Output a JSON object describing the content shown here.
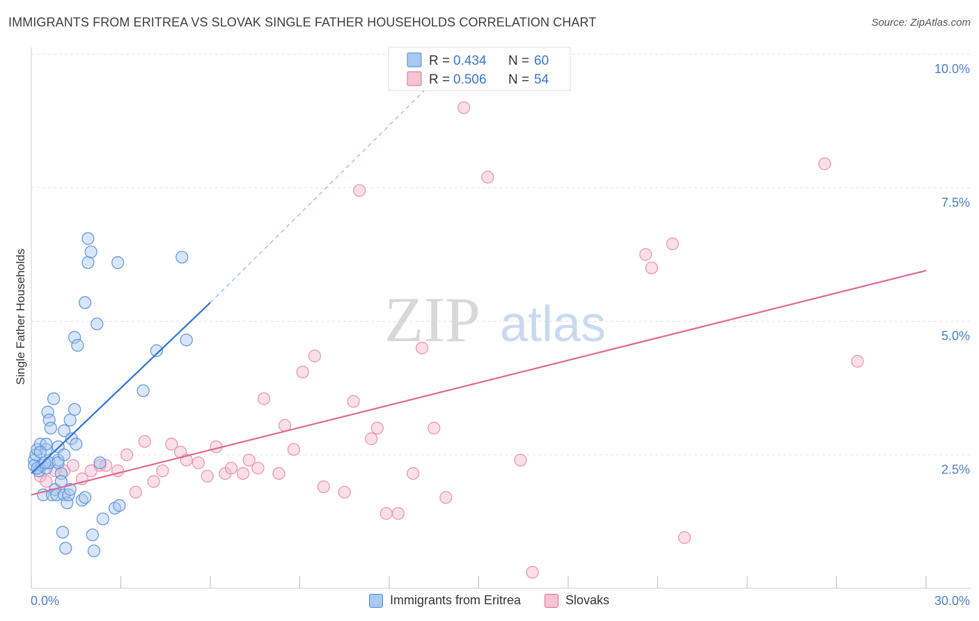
{
  "header": {
    "title": "IMMIGRANTS FROM ERITREA VS SLOVAK SINGLE FATHER HOUSEHOLDS CORRELATION CHART",
    "source": "Source: ZipAtlas.com"
  },
  "watermark": {
    "zip": "ZIP",
    "atlas": "atlas"
  },
  "colors": {
    "blue": "#4a86d8",
    "blue_fill": "#a9c8f0",
    "pink": "#e06890",
    "pink_fill": "#f5b8cc",
    "tick_label": "#4a7fc8",
    "grid": "#e3e3e3"
  },
  "legend": {
    "rows": [
      {
        "r_label": "R =",
        "r_value": "0.434",
        "n_label": "N =",
        "n_value": "60"
      },
      {
        "r_label": "R =",
        "r_value": "0.506",
        "n_label": "N =",
        "n_value": "54"
      }
    ]
  },
  "bottom_legend": [
    "Immigrants from Eritrea",
    "Slovaks"
  ],
  "chart_data": {
    "type": "scatter",
    "title": "IMMIGRANTS FROM ERITREA VS SLOVAK SINGLE FATHER HOUSEHOLDS CORRELATION CHART",
    "xlabel": "",
    "ylabel": "Single Father Households",
    "xlim": [
      0,
      30
    ],
    "ylim": [
      0,
      10.5
    ],
    "x_tick_labels": [
      "0.0%",
      "30.0%"
    ],
    "y_ticks": [
      2.5,
      5.0,
      7.5,
      10.0
    ],
    "y_tick_labels": [
      "2.5%",
      "5.0%",
      "7.5%",
      "10.0%"
    ],
    "grid": true,
    "legend_position": "top-center",
    "series": [
      {
        "name": "Immigrants from Eritrea",
        "color": "#4a86d8",
        "trendline": {
          "x": [
            0.0,
            6.0
          ],
          "y": [
            2.15,
            5.35
          ],
          "dashed_to": [
            13.5,
            9.5
          ]
        },
        "points": [
          [
            0.1,
            2.4
          ],
          [
            0.1,
            2.3
          ],
          [
            0.15,
            2.5
          ],
          [
            0.2,
            2.6
          ],
          [
            0.25,
            2.2
          ],
          [
            0.3,
            2.7
          ],
          [
            0.35,
            2.3
          ],
          [
            0.4,
            1.75
          ],
          [
            0.5,
            2.25
          ],
          [
            0.5,
            2.6
          ],
          [
            0.6,
            2.35
          ],
          [
            0.6,
            2.35
          ],
          [
            0.5,
            2.7
          ],
          [
            0.55,
            3.3
          ],
          [
            0.6,
            3.15
          ],
          [
            0.65,
            3.0
          ],
          [
            0.7,
            1.75
          ],
          [
            0.75,
            3.55
          ],
          [
            0.8,
            1.85
          ],
          [
            0.85,
            1.75
          ],
          [
            0.9,
            2.4
          ],
          [
            0.9,
            2.65
          ],
          [
            0.9,
            2.35
          ],
          [
            1.0,
            2.15
          ],
          [
            1.0,
            2.0
          ],
          [
            1.05,
            1.05
          ],
          [
            1.1,
            1.75
          ],
          [
            1.1,
            2.5
          ],
          [
            1.1,
            2.95
          ],
          [
            1.15,
            0.75
          ],
          [
            1.2,
            1.6
          ],
          [
            1.25,
            1.75
          ],
          [
            1.3,
            3.15
          ],
          [
            1.3,
            1.85
          ],
          [
            1.35,
            2.8
          ],
          [
            1.45,
            3.35
          ],
          [
            1.45,
            4.7
          ],
          [
            1.5,
            2.7
          ],
          [
            1.55,
            4.55
          ],
          [
            1.7,
            1.65
          ],
          [
            1.8,
            1.7
          ],
          [
            1.8,
            5.35
          ],
          [
            1.9,
            6.1
          ],
          [
            1.9,
            6.55
          ],
          [
            2.0,
            6.3
          ],
          [
            2.05,
            1.0
          ],
          [
            2.1,
            0.7
          ],
          [
            2.2,
            4.95
          ],
          [
            2.3,
            2.35
          ],
          [
            2.4,
            1.3
          ],
          [
            2.8,
            1.5
          ],
          [
            2.9,
            6.1
          ],
          [
            2.95,
            1.55
          ],
          [
            4.2,
            4.45
          ],
          [
            3.75,
            3.7
          ],
          [
            5.05,
            6.2
          ],
          [
            5.2,
            4.65
          ],
          [
            0.2,
            2.25
          ],
          [
            0.3,
            2.55
          ],
          [
            0.45,
            2.35
          ]
        ]
      },
      {
        "name": "Slovaks",
        "color": "#e06890",
        "trendline": {
          "x": [
            0.0,
            30.0
          ],
          "y": [
            1.75,
            5.95
          ]
        },
        "points": [
          [
            0.3,
            2.1
          ],
          [
            0.5,
            2.0
          ],
          [
            0.8,
            2.2
          ],
          [
            1.1,
            2.2
          ],
          [
            1.4,
            2.3
          ],
          [
            1.7,
            2.05
          ],
          [
            2.0,
            2.2
          ],
          [
            2.3,
            2.3
          ],
          [
            2.5,
            2.3
          ],
          [
            2.9,
            2.2
          ],
          [
            3.2,
            2.5
          ],
          [
            3.5,
            1.8
          ],
          [
            3.8,
            2.75
          ],
          [
            4.1,
            2.0
          ],
          [
            4.4,
            2.2
          ],
          [
            4.7,
            2.7
          ],
          [
            5.0,
            2.55
          ],
          [
            5.2,
            2.4
          ],
          [
            5.6,
            2.35
          ],
          [
            5.9,
            2.1
          ],
          [
            6.2,
            2.65
          ],
          [
            6.5,
            2.15
          ],
          [
            6.7,
            2.25
          ],
          [
            7.1,
            2.15
          ],
          [
            7.3,
            2.4
          ],
          [
            7.6,
            2.25
          ],
          [
            7.8,
            3.55
          ],
          [
            8.3,
            2.15
          ],
          [
            8.5,
            3.05
          ],
          [
            8.8,
            2.6
          ],
          [
            9.1,
            4.05
          ],
          [
            9.5,
            4.35
          ],
          [
            9.8,
            1.9
          ],
          [
            10.5,
            1.8
          ],
          [
            10.8,
            3.5
          ],
          [
            11.0,
            7.45
          ],
          [
            11.4,
            2.8
          ],
          [
            11.6,
            3.0
          ],
          [
            11.9,
            1.4
          ],
          [
            12.3,
            1.4
          ],
          [
            12.8,
            2.15
          ],
          [
            13.1,
            4.5
          ],
          [
            13.5,
            3.0
          ],
          [
            13.9,
            1.7
          ],
          [
            14.5,
            9.0
          ],
          [
            15.3,
            7.7
          ],
          [
            16.4,
            2.4
          ],
          [
            16.8,
            0.3
          ],
          [
            20.6,
            6.25
          ],
          [
            20.8,
            6.0
          ],
          [
            21.5,
            6.45
          ],
          [
            21.9,
            0.95
          ],
          [
            26.6,
            7.95
          ],
          [
            27.7,
            4.25
          ]
        ]
      }
    ]
  }
}
